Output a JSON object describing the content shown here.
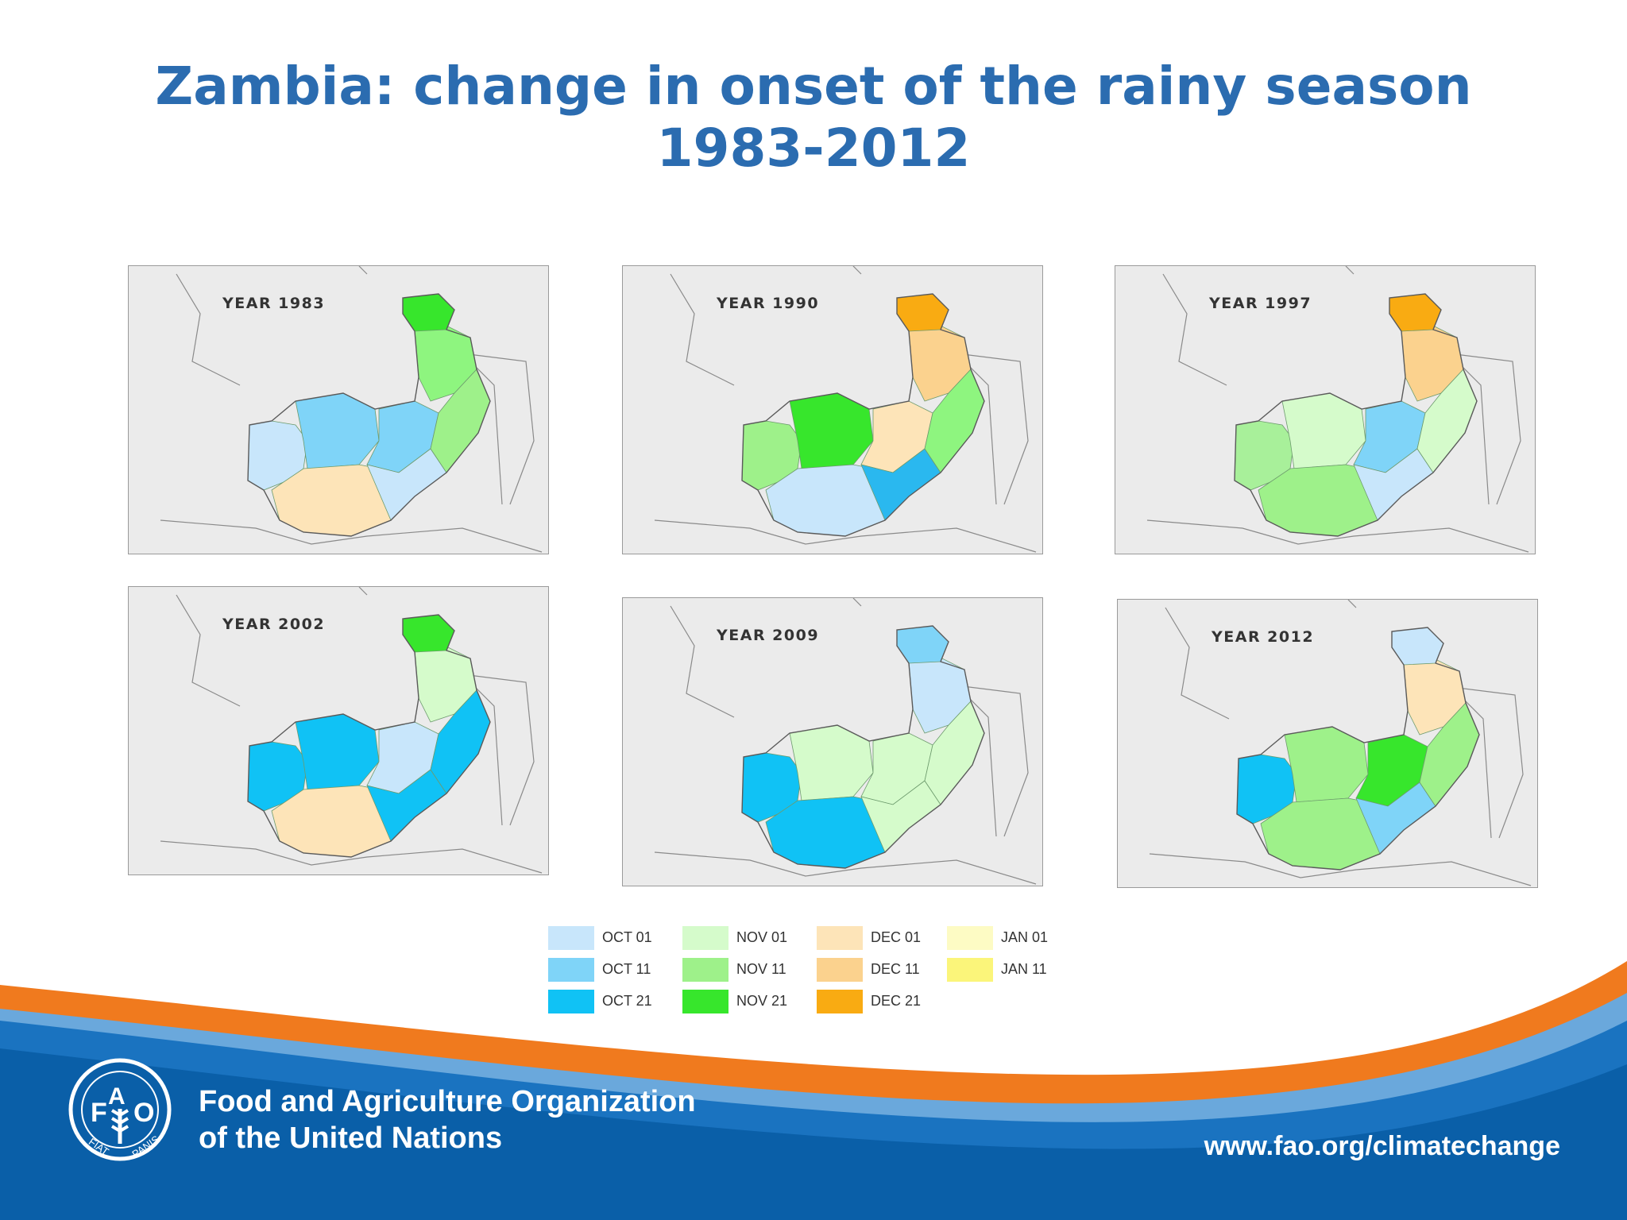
{
  "title": {
    "line1": "Zambia: change in onset of the rainy season",
    "line2": "1983-2012"
  },
  "colors": {
    "title": "#2b6cb0",
    "background_land": "#ebebeb",
    "footer_blue": "#0a5fa8",
    "footer_orange": "#f07a1e"
  },
  "maps": [
    {
      "label": "YEAR 1983",
      "palette": [
        "#c8e6fb",
        "#7fd4f8",
        "#7fd4f8",
        "#8ef57f",
        "#37e62c",
        "#fde4b8",
        "#c8e6fb",
        "#9ef18a"
      ]
    },
    {
      "label": "YEAR 1990",
      "palette": [
        "#9ef18a",
        "#37e62c",
        "#fde4b8",
        "#fbd28e",
        "#f9ab12",
        "#c8e6fb",
        "#2ab8ef",
        "#8ef57f"
      ]
    },
    {
      "label": "YEAR 1997",
      "palette": [
        "#a8f09a",
        "#d5fbcb",
        "#7fd4f8",
        "#fbd28e",
        "#f9ab12",
        "#9ef18a",
        "#c8e6fb",
        "#d5fbcb"
      ]
    },
    {
      "label": "YEAR 2002",
      "palette": [
        "#10c2f5",
        "#10c2f5",
        "#c8e6fb",
        "#d5fbcb",
        "#37e62c",
        "#fde4b8",
        "#10c2f5",
        "#10c2f5"
      ]
    },
    {
      "label": "YEAR 2009",
      "palette": [
        "#10c2f5",
        "#d5fbcb",
        "#d5fbcb",
        "#c8e6fb",
        "#7fd4f8",
        "#10c2f5",
        "#d5fbcb",
        "#d5fbcb"
      ]
    },
    {
      "label": "YEAR 2012",
      "palette": [
        "#10c2f5",
        "#9ef18a",
        "#37e62c",
        "#fde4b8",
        "#c8e6fb",
        "#9ef18a",
        "#7fd4f8",
        "#9ef18a"
      ]
    }
  ],
  "legend": [
    {
      "label": "OCT 01",
      "color": "#c8e6fb"
    },
    {
      "label": "OCT 11",
      "color": "#7fd4f8"
    },
    {
      "label": "OCT 21",
      "color": "#10c2f5"
    },
    {
      "label": "NOV 01",
      "color": "#d5fbcb"
    },
    {
      "label": "NOV 11",
      "color": "#9ef18a"
    },
    {
      "label": "NOV 21",
      "color": "#37e62c"
    },
    {
      "label": "DEC 01",
      "color": "#fde4b8"
    },
    {
      "label": "DEC 11",
      "color": "#fbd28e"
    },
    {
      "label": "DEC 21",
      "color": "#f9ab12"
    },
    {
      "label": "JAN 01",
      "color": "#fdfbc4"
    },
    {
      "label": "JAN 11",
      "color": "#fbf57a"
    }
  ],
  "footer": {
    "org_line1": "Food and Agriculture Organization",
    "org_line2": "of the United Nations",
    "url": "www.fao.org/climatechange",
    "logo_text": "FAO",
    "logo_motto": "FIAT PANIS"
  }
}
